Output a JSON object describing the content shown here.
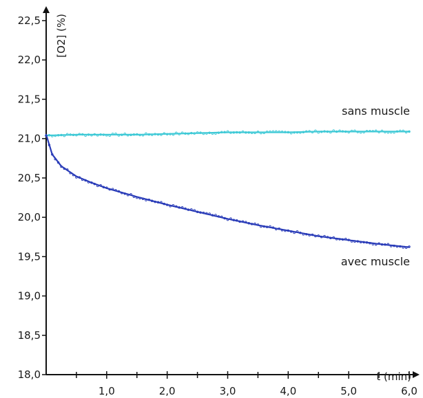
{
  "chart_data": {
    "type": "scatter",
    "title": "",
    "xlabel": "t (min)",
    "ylabel": "[O2] (%)",
    "xlim": [
      0,
      6.0
    ],
    "ylim": [
      18.0,
      22.5
    ],
    "x_ticks": [
      "1,0",
      "2,0",
      "3,0",
      "4,0",
      "5,0",
      "6,0"
    ],
    "y_ticks": [
      "18,0",
      "18,5",
      "19,0",
      "19,5",
      "20,0",
      "20,5",
      "21,0",
      "21,5",
      "22,0",
      "22,5"
    ],
    "grid": false,
    "colors": {
      "sans_muscle": "#3ec9d6",
      "avec_muscle": "#2a3cb8",
      "axis": "#111111"
    },
    "series": [
      {
        "name": "sans muscle",
        "x": [
          0,
          0.5,
          1.0,
          1.5,
          2.0,
          2.5,
          3.0,
          3.5,
          4.0,
          4.5,
          5.0,
          5.5,
          6.0
        ],
        "y": [
          21.04,
          21.05,
          21.05,
          21.05,
          21.06,
          21.07,
          21.08,
          21.08,
          21.08,
          21.09,
          21.09,
          21.09,
          21.09
        ]
      },
      {
        "name": "avec muscle",
        "x": [
          0,
          0.1,
          0.25,
          0.5,
          0.75,
          1.0,
          1.5,
          2.0,
          2.5,
          3.0,
          3.5,
          4.0,
          4.5,
          5.0,
          5.5,
          6.0
        ],
        "y": [
          21.05,
          20.8,
          20.65,
          20.52,
          20.44,
          20.37,
          20.26,
          20.16,
          20.07,
          19.98,
          19.9,
          19.83,
          19.76,
          19.71,
          19.66,
          19.62
        ]
      }
    ]
  }
}
